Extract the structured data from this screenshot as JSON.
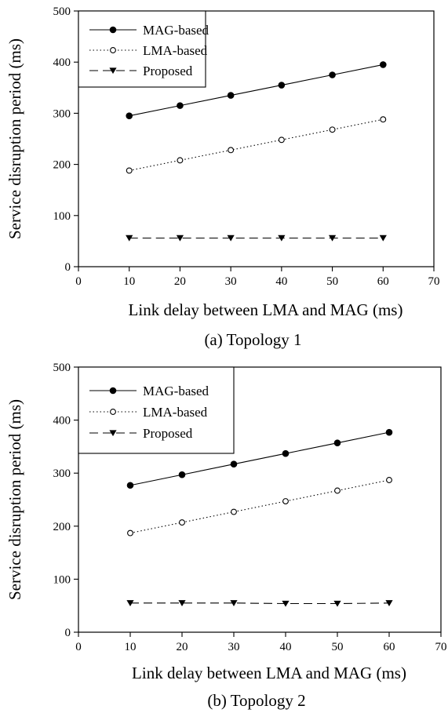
{
  "chart_data": [
    {
      "type": "line",
      "caption": "(a) Topology 1",
      "xlabel": "Link delay between LMA and MAG (ms)",
      "ylabel": "Service disruption period (ms)",
      "xlim": [
        0,
        70
      ],
      "ylim": [
        0,
        500
      ],
      "xticks": [
        0,
        10,
        20,
        30,
        40,
        50,
        60,
        70
      ],
      "yticks": [
        0,
        100,
        200,
        300,
        400,
        500
      ],
      "grid": false,
      "legend_position": "top-left",
      "x": [
        10,
        20,
        30,
        40,
        50,
        60
      ],
      "series": [
        {
          "name": "MAG-based",
          "marker": "filled-circle",
          "line": "solid",
          "values": [
            295,
            315,
            335,
            355,
            375,
            395
          ]
        },
        {
          "name": "LMA-based",
          "marker": "open-circle",
          "line": "dotted",
          "values": [
            188,
            208,
            228,
            248,
            268,
            288
          ]
        },
        {
          "name": "Proposed",
          "marker": "filled-triangle-down",
          "line": "dashed",
          "values": [
            56,
            56,
            56,
            56,
            56,
            56
          ]
        }
      ]
    },
    {
      "type": "line",
      "caption": "(b) Topology 2",
      "xlabel": "Link delay between LMA and MAG (ms)",
      "ylabel": "Service disruption period (ms)",
      "xlim": [
        0,
        70
      ],
      "ylim": [
        0,
        500
      ],
      "xticks": [
        0,
        10,
        20,
        30,
        40,
        50,
        60,
        70
      ],
      "yticks": [
        0,
        100,
        200,
        300,
        400,
        500
      ],
      "grid": false,
      "legend_position": "top-left",
      "x": [
        10,
        20,
        30,
        40,
        50,
        60
      ],
      "series": [
        {
          "name": "MAG-based",
          "marker": "filled-circle",
          "line": "solid",
          "values": [
            277,
            297,
            317,
            337,
            357,
            377
          ]
        },
        {
          "name": "LMA-based",
          "marker": "open-circle",
          "line": "dotted",
          "values": [
            187,
            207,
            227,
            247,
            267,
            287
          ]
        },
        {
          "name": "Proposed",
          "marker": "filled-triangle-down",
          "line": "dashed",
          "values": [
            55,
            55,
            55,
            54,
            54,
            55
          ]
        }
      ]
    }
  ]
}
